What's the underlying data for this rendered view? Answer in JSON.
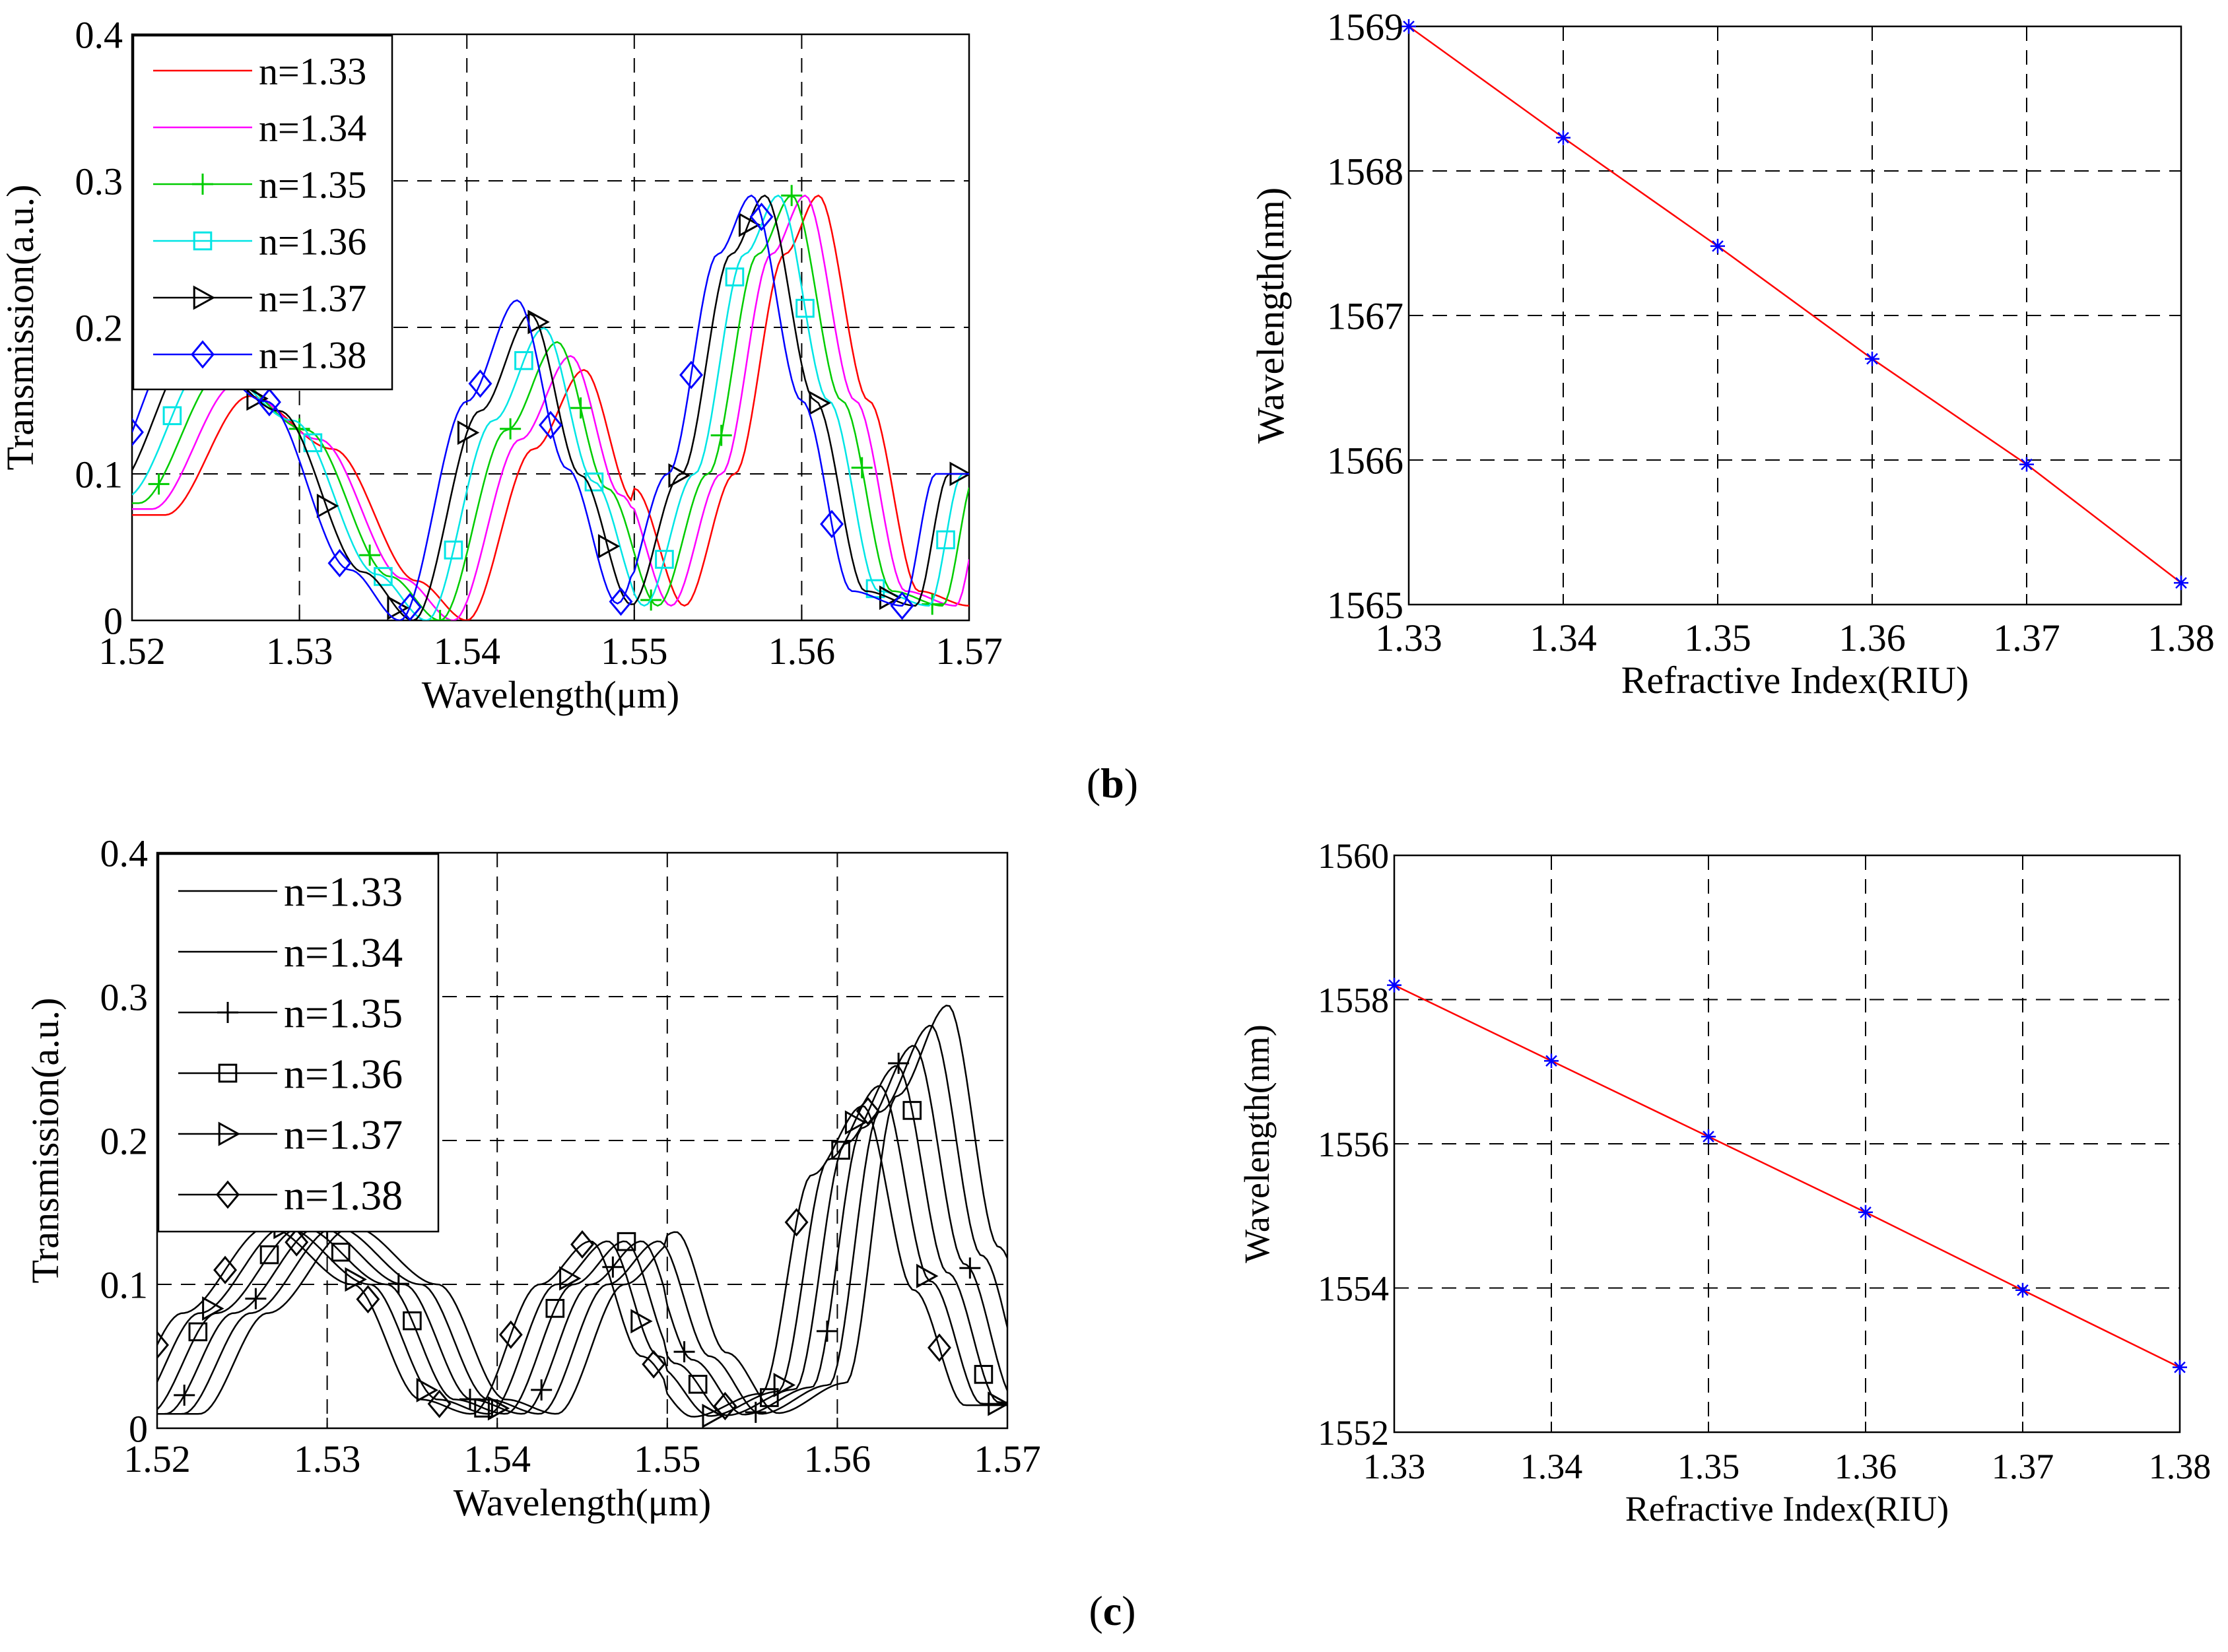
{
  "figure": {
    "label_b": "(b)",
    "label_c": "(c)",
    "label_b_letter": "b",
    "label_c_letter": "c"
  },
  "colors": {
    "red": "#ff0000",
    "magenta": "#ff00ff",
    "green": "#00cc00",
    "cyan": "#00e5e5",
    "black": "#000000",
    "blue": "#0000ff",
    "grid": "#000000"
  },
  "chart_data": [
    {
      "id": "b_transmission",
      "type": "line",
      "xlabel": "Wavelength(μm)",
      "ylabel": "Transmission(a.u.)",
      "xlim": [
        1.52,
        1.57
      ],
      "ylim": [
        0,
        0.4
      ],
      "xticks": [
        "1.52",
        "1.53",
        "1.54",
        "1.55",
        "1.56",
        "1.57"
      ],
      "yticks": [
        "0",
        "0.1",
        "0.2",
        "0.3",
        "0.4"
      ],
      "legend": "top-left",
      "grid": true,
      "series": [
        {
          "name": "n=1.33",
          "color": "#ff0000",
          "marker": "none",
          "shift": 0.002,
          "amp": [
            0.9,
            1.0
          ]
        },
        {
          "name": "n=1.34",
          "color": "#ff00ff",
          "marker": "none",
          "shift": 0.0012,
          "amp": [
            0.95,
            1.0
          ]
        },
        {
          "name": "n=1.35",
          "color": "#00cc00",
          "marker": "plus",
          "shift": 0.0004,
          "amp": [
            1.0,
            1.0
          ]
        },
        {
          "name": "n=1.36",
          "color": "#00e5e5",
          "marker": "square",
          "shift": -0.0004,
          "amp": [
            1.05,
            1.0
          ]
        },
        {
          "name": "n=1.37",
          "color": "#000000",
          "marker": "triangle-right",
          "shift": -0.0012,
          "amp": [
            1.1,
            1.0
          ]
        },
        {
          "name": "n=1.38",
          "color": "#0000ff",
          "marker": "diamond",
          "shift": -0.002,
          "amp": [
            1.15,
            1.0
          ]
        }
      ],
      "base_curve": {
        "x": [
          1.52,
          1.525,
          1.53,
          1.535,
          1.538,
          1.542,
          1.545,
          1.548,
          1.551,
          1.554,
          1.557,
          1.559,
          1.562,
          1.565,
          1.568,
          1.57
        ],
        "y": [
          0.08,
          0.17,
          0.13,
          0.03,
          0.0,
          0.13,
          0.19,
          0.09,
          0.01,
          0.1,
          0.25,
          0.29,
          0.15,
          0.02,
          0.01,
          0.1
        ]
      }
    },
    {
      "id": "b_sensitivity",
      "type": "line",
      "xlabel": "Refractive Index(RIU)",
      "ylabel": "Wavelength(nm)",
      "xlim": [
        1.33,
        1.38
      ],
      "ylim": [
        1565,
        1569
      ],
      "xticks": [
        "1.33",
        "1.34",
        "1.35",
        "1.36",
        "1.37",
        "1.38"
      ],
      "yticks": [
        "1565",
        "1566",
        "1567",
        "1568",
        "1569"
      ],
      "grid": true,
      "x": [
        1.33,
        1.34,
        1.35,
        1.36,
        1.37,
        1.38
      ],
      "y": [
        1569.0,
        1568.23,
        1567.48,
        1566.7,
        1565.97,
        1565.15
      ],
      "line_color": "#ff0000",
      "marker_color": "#0000ff",
      "marker": "asterisk"
    },
    {
      "id": "c_transmission",
      "type": "line",
      "xlabel": "Wavelength(μm)",
      "ylabel": "Transmission(a.u.)",
      "xlim": [
        1.52,
        1.57
      ],
      "ylim": [
        0,
        0.4
      ],
      "xticks": [
        "1.52",
        "1.53",
        "1.54",
        "1.55",
        "1.56",
        "1.57"
      ],
      "yticks": [
        "0",
        "0.1",
        "0.2",
        "0.3",
        "0.4"
      ],
      "legend": "top-left",
      "grid": true,
      "series": [
        {
          "name": "n=1.33",
          "color": "#000000",
          "marker": "none",
          "shift": 0.0025,
          "amp": [
            1.0,
            1.05
          ]
        },
        {
          "name": "n=1.34",
          "color": "#000000",
          "marker": "none",
          "shift": 0.0015,
          "amp": [
            1.0,
            1.0
          ]
        },
        {
          "name": "n=1.35",
          "color": "#000000",
          "marker": "plus",
          "shift": 0.0005,
          "amp": [
            1.0,
            0.95
          ]
        },
        {
          "name": "n=1.36",
          "color": "#000000",
          "marker": "square",
          "shift": -0.0005,
          "amp": [
            1.0,
            0.9
          ]
        },
        {
          "name": "n=1.37",
          "color": "#000000",
          "marker": "triangle-right",
          "shift": -0.0015,
          "amp": [
            1.0,
            0.85
          ]
        },
        {
          "name": "n=1.38",
          "color": "#000000",
          "marker": "diamond",
          "shift": -0.0025,
          "amp": [
            1.0,
            0.8
          ]
        }
      ],
      "base_curve": {
        "x": [
          1.52,
          1.524,
          1.529,
          1.534,
          1.538,
          1.541,
          1.545,
          1.548,
          1.551,
          1.554,
          1.558,
          1.561,
          1.564,
          1.567,
          1.57
        ],
        "y": [
          0.01,
          0.08,
          0.14,
          0.1,
          0.02,
          0.01,
          0.1,
          0.13,
          0.05,
          0.01,
          0.03,
          0.22,
          0.28,
          0.12,
          0.02
        ]
      }
    },
    {
      "id": "c_sensitivity",
      "type": "line",
      "xlabel": "Refractive Index(RIU)",
      "ylabel": "Wavelength(nm)",
      "xlim": [
        1.33,
        1.38
      ],
      "ylim": [
        1552,
        1560
      ],
      "xticks": [
        "1.33",
        "1.34",
        "1.35",
        "1.36",
        "1.37",
        "1.38"
      ],
      "yticks": [
        "1552",
        "1554",
        "1556",
        "1558",
        "1560"
      ],
      "grid": true,
      "x": [
        1.33,
        1.34,
        1.35,
        1.36,
        1.37,
        1.38
      ],
      "y": [
        1558.2,
        1557.15,
        1556.1,
        1555.05,
        1553.97,
        1552.9
      ],
      "line_color": "#ff0000",
      "marker_color": "#0000ff",
      "marker": "asterisk"
    }
  ]
}
